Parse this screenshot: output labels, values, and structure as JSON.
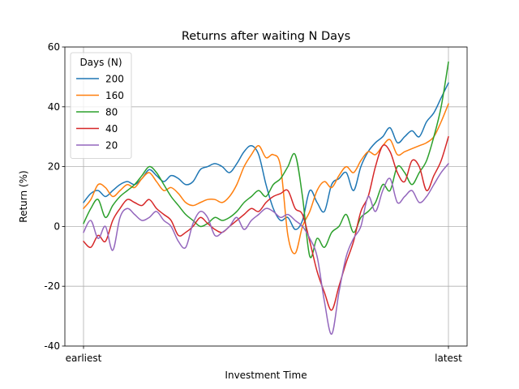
{
  "chart_data": {
    "type": "line",
    "title": "Returns after waiting N Days",
    "xlabel": "Investment Time",
    "ylabel": "Return (%)",
    "x_tick_labels": [
      "earliest",
      "latest"
    ],
    "x_domain": [
      0,
      100
    ],
    "ylim": [
      -40,
      60
    ],
    "y_ticks": [
      -40,
      -20,
      0,
      20,
      40,
      60
    ],
    "grid": true,
    "legend": {
      "title": "Days (N)",
      "placement": "top-left"
    },
    "x": [
      0,
      2,
      4,
      6,
      8,
      10,
      12,
      14,
      16,
      18,
      20,
      22,
      24,
      26,
      28,
      30,
      32,
      34,
      36,
      38,
      40,
      42,
      44,
      46,
      48,
      50,
      52,
      54,
      56,
      58,
      60,
      62,
      64,
      66,
      68,
      70,
      72,
      74,
      76,
      78,
      80,
      82,
      84,
      86,
      88,
      90,
      92,
      94,
      96,
      98,
      100
    ],
    "series": [
      {
        "name": "200",
        "color": "#1f77b4",
        "values": [
          8,
          11,
          12,
          10,
          12,
          14,
          15,
          14,
          16,
          19,
          17,
          15,
          17,
          16,
          14,
          15,
          19,
          20,
          21,
          20,
          18,
          21,
          25,
          27,
          24,
          14,
          6,
          2,
          3,
          -1,
          2,
          12,
          8,
          5,
          14,
          16,
          18,
          12,
          20,
          25,
          28,
          30,
          33,
          28,
          30,
          32,
          30,
          35,
          38,
          43,
          48
        ]
      },
      {
        "name": "160",
        "color": "#ff7f0e",
        "values": [
          6,
          9,
          14,
          13,
          10,
          12,
          14,
          13,
          16,
          18,
          15,
          12,
          13,
          11,
          8,
          7,
          8,
          9,
          9,
          8,
          10,
          14,
          20,
          24,
          27,
          23,
          24,
          20,
          -3,
          -9,
          0,
          5,
          12,
          15,
          13,
          17,
          20,
          18,
          22,
          25,
          24,
          27,
          29,
          24,
          25,
          26,
          27,
          28,
          30,
          35,
          41
        ]
      },
      {
        "name": "80",
        "color": "#2ca02c",
        "values": [
          1,
          6,
          9,
          3,
          7,
          10,
          12,
          14,
          17,
          20,
          18,
          14,
          10,
          7,
          4,
          2,
          0,
          1,
          3,
          2,
          3,
          5,
          8,
          10,
          12,
          10,
          14,
          16,
          20,
          24,
          10,
          -10,
          -4,
          -7,
          -2,
          0,
          4,
          -2,
          3,
          5,
          8,
          14,
          12,
          20,
          18,
          14,
          18,
          22,
          30,
          40,
          55
        ]
      },
      {
        "name": "40",
        "color": "#d62728",
        "values": [
          -5,
          -7,
          -3,
          -5,
          2,
          6,
          9,
          8,
          7,
          9,
          6,
          4,
          2,
          -3,
          -2,
          0,
          3,
          1,
          -1,
          -2,
          0,
          2,
          4,
          6,
          5,
          8,
          10,
          11,
          12,
          6,
          4,
          -5,
          -15,
          -22,
          -28,
          -20,
          -12,
          -5,
          5,
          10,
          20,
          27,
          25,
          18,
          15,
          22,
          20,
          12,
          17,
          22,
          30
        ]
      },
      {
        "name": "20",
        "color": "#9467bd",
        "values": [
          -2,
          2,
          -4,
          0,
          -8,
          3,
          6,
          4,
          2,
          3,
          5,
          2,
          0,
          -5,
          -7,
          1,
          5,
          3,
          -3,
          -2,
          0,
          3,
          -1,
          2,
          4,
          6,
          5,
          3,
          4,
          2,
          0,
          -4,
          -10,
          -25,
          -36,
          -22,
          -10,
          -4,
          0,
          10,
          5,
          12,
          16,
          8,
          10,
          12,
          8,
          10,
          14,
          18,
          21
        ]
      }
    ]
  }
}
